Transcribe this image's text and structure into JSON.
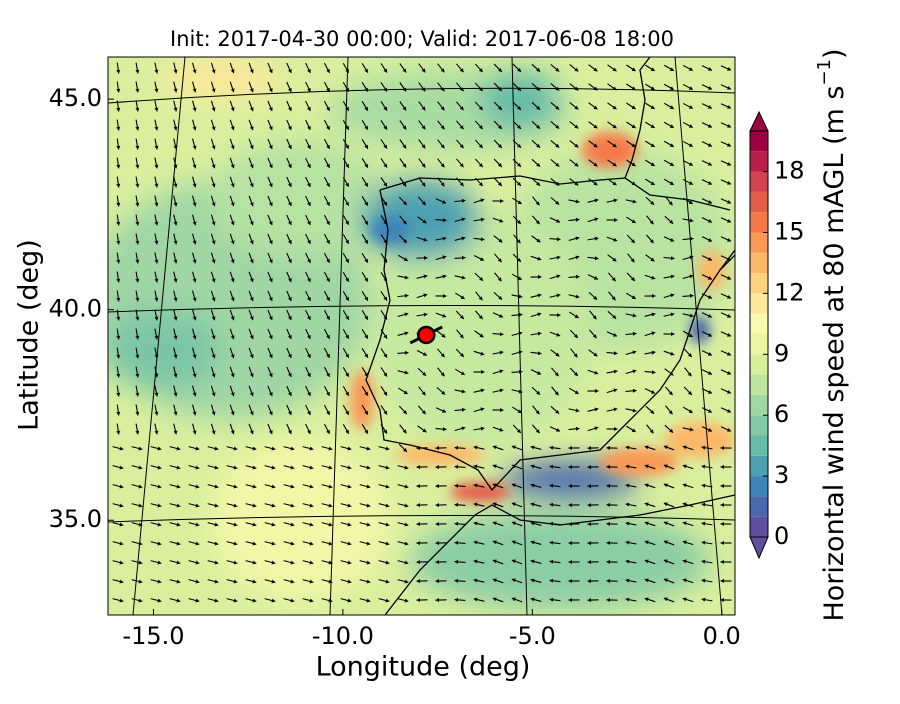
{
  "chart_data": {
    "type": "map",
    "title": "Init: 2017-04-30 00:00; Valid: 2017-06-08 18:00",
    "x_label": "Longitude (deg)",
    "y_label": "Latitude (deg)",
    "xlim": [
      -16.2,
      0.35
    ],
    "ylim": [
      32.75,
      46.0
    ],
    "xticks": [
      {
        "value": -15,
        "label": "-15.0"
      },
      {
        "value": -10,
        "label": "-10.0"
      },
      {
        "value": -5,
        "label": "-5.0"
      },
      {
        "value": 0,
        "label": "0.0"
      }
    ],
    "yticks": [
      {
        "value": 35,
        "label": "35.0"
      },
      {
        "value": 40,
        "label": "40.0"
      },
      {
        "value": 45,
        "label": "45.0"
      }
    ],
    "marker": {
      "lon": -7.8,
      "lat": 39.4,
      "color": "#ff0000"
    },
    "colorbar": {
      "label_main": "Horizontal wind speed at 80 mAGL (m s",
      "label_exponent": "−1",
      "label_close": ")",
      "clim": [
        0,
        20
      ],
      "ticks": [
        0,
        3,
        6,
        9,
        12,
        15,
        18
      ],
      "extend": "both",
      "colors": [
        "#5e4fa2",
        "#4a68ae",
        "#3d84b9",
        "#4da0b1",
        "#66bca8",
        "#82caa5",
        "#a0d8a4",
        "#bde5a0",
        "#d5ef9b",
        "#ebf7a0",
        "#fbf8b0",
        "#fee89a",
        "#fed27f",
        "#fdb769",
        "#fa9856",
        "#f47a4a",
        "#e45d48",
        "#d2434d",
        "#b91f48",
        "#9e0142"
      ]
    }
  }
}
